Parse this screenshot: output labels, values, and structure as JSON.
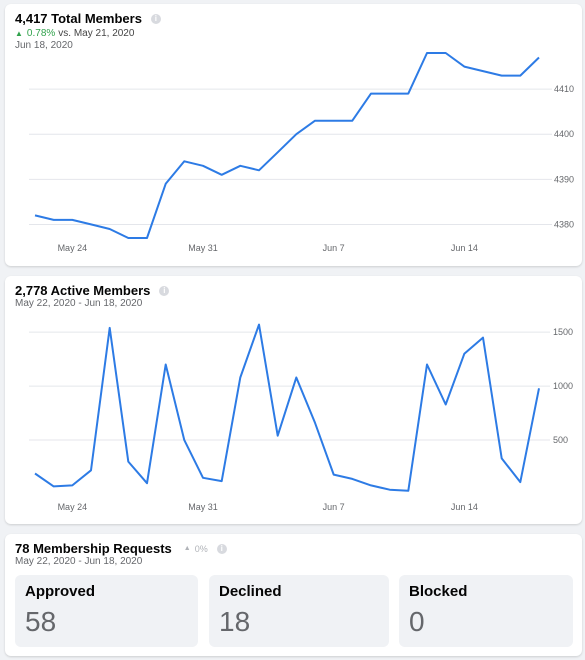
{
  "total_members": {
    "title": "4,417 Total Members",
    "trend_pct": "0.78%",
    "trend_text": "vs. May 21, 2020",
    "date": "Jun 18, 2020"
  },
  "active_members": {
    "title": "2,778 Active Members",
    "date_range": "May 22, 2020 - Jun 18, 2020"
  },
  "requests": {
    "title": "78 Membership Requests",
    "pct": "0%",
    "date_range": "May 22, 2020 - Jun 18, 2020",
    "approved_label": "Approved",
    "approved_value": "58",
    "declined_label": "Declined",
    "declined_value": "18",
    "blocked_label": "Blocked",
    "blocked_value": "0"
  },
  "colors": {
    "line": "#2d7be5",
    "grid": "#e4e6eb",
    "positive": "#31a24c"
  },
  "chart_data": [
    {
      "type": "line",
      "title": "4,417 Total Members",
      "x": [
        "May 22",
        "May 23",
        "May 24",
        "May 25",
        "May 26",
        "May 27",
        "May 28",
        "May 29",
        "May 30",
        "May 31",
        "Jun 1",
        "Jun 2",
        "Jun 3",
        "Jun 4",
        "Jun 5",
        "Jun 6",
        "Jun 7",
        "Jun 8",
        "Jun 9",
        "Jun 10",
        "Jun 11",
        "Jun 12",
        "Jun 13",
        "Jun 14",
        "Jun 15",
        "Jun 16",
        "Jun 17",
        "Jun 18"
      ],
      "values": [
        4382,
        4381,
        4381,
        4380,
        4379,
        4377,
        4377,
        4389,
        4394,
        4393,
        4391,
        4393,
        4392,
        4396,
        4400,
        4403,
        4403,
        4403,
        4409,
        4409,
        4409,
        4418,
        4418,
        4415,
        4414,
        4413,
        4413,
        4417
      ],
      "x_ticks": [
        "May 24",
        "May 31",
        "Jun 7",
        "Jun 14"
      ],
      "y_ticks": [
        4380,
        4390,
        4400,
        4410
      ],
      "ylim": [
        4375,
        4420
      ],
      "grid": true
    },
    {
      "type": "line",
      "title": "2,778 Active Members",
      "x": [
        "May 22",
        "May 23",
        "May 24",
        "May 25",
        "May 26",
        "May 27",
        "May 28",
        "May 29",
        "May 30",
        "May 31",
        "Jun 1",
        "Jun 2",
        "Jun 3",
        "Jun 4",
        "Jun 5",
        "Jun 6",
        "Jun 7",
        "Jun 8",
        "Jun 9",
        "Jun 10",
        "Jun 11",
        "Jun 12",
        "Jun 13",
        "Jun 14",
        "Jun 15",
        "Jun 16",
        "Jun 17",
        "Jun 18"
      ],
      "values": [
        190,
        70,
        80,
        220,
        1540,
        300,
        100,
        1200,
        500,
        150,
        120,
        1080,
        1570,
        540,
        1080,
        660,
        180,
        140,
        80,
        40,
        30,
        1200,
        830,
        1300,
        1450,
        330,
        110,
        980
      ],
      "x_ticks": [
        "May 24",
        "May 31",
        "Jun 7",
        "Jun 14"
      ],
      "y_ticks": [
        500,
        1000,
        1500
      ],
      "ylim": [
        0,
        1650
      ],
      "grid": true
    }
  ]
}
